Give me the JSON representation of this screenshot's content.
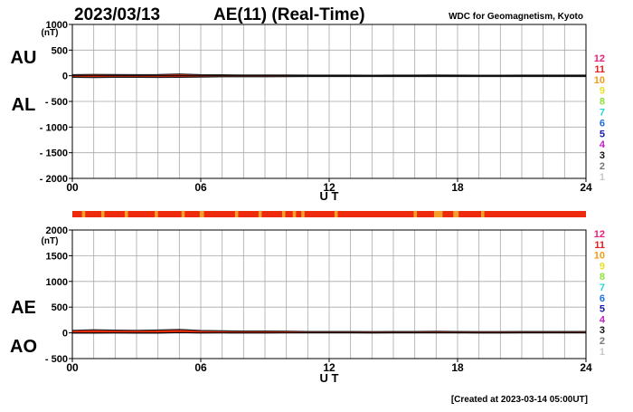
{
  "header": {
    "date": "2023/03/13",
    "title": "AE(11) (Real-Time)",
    "source": "WDC for Geomagnetism, Kyoto"
  },
  "footer": {
    "created": "[Created at 2023-03-14 05:00UT]"
  },
  "colors": {
    "band_fill": "#ee2a0c",
    "band_stroke": "#222222",
    "grid": "#a8a8a8",
    "station_count_bar": "#ee2a0c",
    "station_count_highlight": "#f3a02a"
  },
  "legend_levels": [
    {
      "label": "12",
      "color": "#e8207a"
    },
    {
      "label": "11",
      "color": "#e81e1e"
    },
    {
      "label": "10",
      "color": "#f39a1c"
    },
    {
      "label": "9",
      "color": "#e6e02a"
    },
    {
      "label": "8",
      "color": "#8ee23a"
    },
    {
      "label": "7",
      "color": "#28d4d6"
    },
    {
      "label": "6",
      "color": "#1e6ee6"
    },
    {
      "label": "5",
      "color": "#1a1aa8"
    },
    {
      "label": "4",
      "color": "#c81ec8"
    },
    {
      "label": "3",
      "color": "#111111"
    },
    {
      "label": "2",
      "color": "#777777"
    },
    {
      "label": "1",
      "color": "#c8c8c8"
    }
  ],
  "chart_data": [
    {
      "type": "area",
      "panel": "AU/AL",
      "unit_label": "(nT)",
      "side_labels": [
        "AU",
        "AL"
      ],
      "xlabel": "U T",
      "xlim": [
        0,
        24
      ],
      "xticks": [
        "00",
        "06",
        "12",
        "18",
        "24"
      ],
      "ylim": [
        -2000,
        1000
      ],
      "yticks": [
        "1000",
        "500",
        "0",
        "- 500",
        "- 1000",
        "- 1500",
        "- 2000"
      ],
      "x": [
        0,
        1,
        2,
        3,
        4,
        5,
        6,
        7,
        8,
        9,
        10,
        11,
        12,
        13,
        14,
        15,
        16,
        17,
        18,
        19,
        20,
        21,
        22,
        23,
        24
      ],
      "series": [
        {
          "name": "AU",
          "values": [
            20,
            25,
            22,
            20,
            22,
            35,
            20,
            18,
            15,
            15,
            15,
            12,
            12,
            12,
            10,
            12,
            12,
            15,
            12,
            10,
            10,
            12,
            12,
            12,
            12
          ]
        },
        {
          "name": "AL",
          "values": [
            -30,
            -35,
            -30,
            -30,
            -32,
            -30,
            -25,
            -20,
            -20,
            -20,
            -18,
            -15,
            -15,
            -15,
            -15,
            -15,
            -15,
            -15,
            -15,
            -15,
            -15,
            -15,
            -15,
            -15,
            -15
          ]
        }
      ],
      "grid": true
    },
    {
      "type": "area",
      "panel": "AE/AO",
      "unit_label": "(nT)",
      "side_labels": [
        "AE",
        "AO"
      ],
      "xlabel": "U T",
      "xlim": [
        0,
        24
      ],
      "xticks": [
        "00",
        "06",
        "12",
        "18",
        "24"
      ],
      "ylim": [
        -500,
        2000
      ],
      "yticks": [
        "2000",
        "1500",
        "1000",
        "500",
        "0",
        "- 500"
      ],
      "x": [
        0,
        1,
        2,
        3,
        4,
        5,
        6,
        7,
        8,
        9,
        10,
        11,
        12,
        13,
        14,
        15,
        16,
        17,
        18,
        19,
        20,
        21,
        22,
        23,
        24
      ],
      "series": [
        {
          "name": "AE",
          "values": [
            50,
            60,
            52,
            50,
            54,
            65,
            45,
            38,
            35,
            35,
            33,
            27,
            27,
            27,
            25,
            27,
            27,
            30,
            27,
            25,
            25,
            27,
            27,
            27,
            27
          ]
        },
        {
          "name": "AO",
          "values": [
            -5,
            -5,
            -4,
            -5,
            -5,
            3,
            -3,
            -1,
            -3,
            -3,
            -2,
            -2,
            -2,
            -2,
            -3,
            -2,
            -2,
            0,
            -2,
            -3,
            -3,
            -2,
            -2,
            -2,
            -2
          ]
        }
      ],
      "grid": true
    }
  ],
  "station_count_strip": {
    "xlim": [
      0,
      24
    ],
    "base_stations": 11,
    "highlight_stations": 10,
    "highlight_intervals_hours": [
      [
        0.45,
        0.6
      ],
      [
        1.35,
        1.5
      ],
      [
        2.45,
        2.6
      ],
      [
        3.85,
        4.0
      ],
      [
        5.1,
        5.25
      ],
      [
        5.95,
        6.15
      ],
      [
        7.6,
        7.75
      ],
      [
        8.7,
        8.85
      ],
      [
        9.8,
        9.95
      ],
      [
        10.3,
        10.45
      ],
      [
        10.7,
        10.85
      ],
      [
        12.25,
        12.4
      ],
      [
        15.95,
        16.1
      ],
      [
        16.9,
        17.3
      ],
      [
        17.8,
        18.05
      ],
      [
        19.1,
        19.25
      ]
    ]
  }
}
